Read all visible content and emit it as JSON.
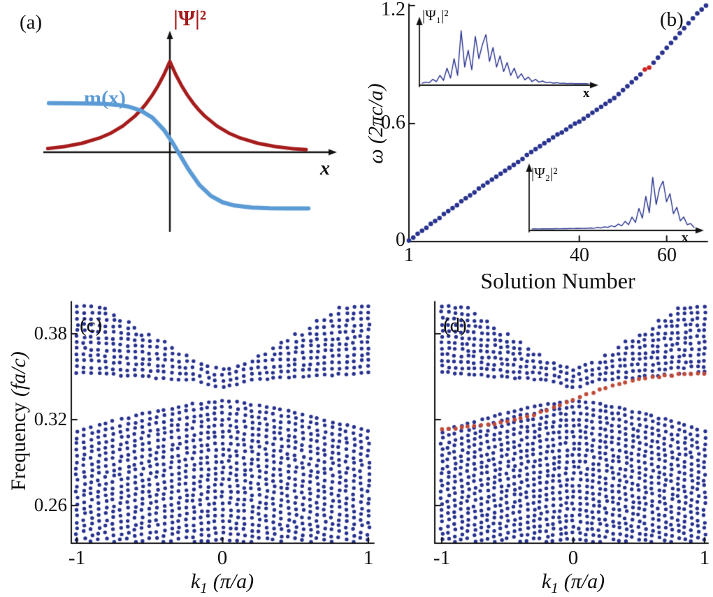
{
  "chart_data": [
    {
      "id": "panel-a",
      "type": "line",
      "panel_label": "(a)",
      "x_label": "x",
      "series": [
        {
          "name": "|Ψ|²",
          "color": "#a61c1c",
          "width": 5,
          "points": [
            [
              -1.04,
              0.04
            ],
            [
              -0.9,
              0.061
            ],
            [
              -0.75,
              0.098
            ],
            [
              -0.6,
              0.156
            ],
            [
              -0.5,
              0.212
            ],
            [
              -0.4,
              0.289
            ],
            [
              -0.3,
              0.395
            ],
            [
              -0.25,
              0.461
            ],
            [
              -0.2,
              0.538
            ],
            [
              -0.15,
              0.628
            ],
            [
              -0.1,
              0.733
            ],
            [
              -0.05,
              0.856
            ],
            [
              0,
              1.0
            ],
            [
              0.05,
              0.856
            ],
            [
              0.1,
              0.733
            ],
            [
              0.15,
              0.628
            ],
            [
              0.2,
              0.538
            ],
            [
              0.25,
              0.461
            ],
            [
              0.3,
              0.395
            ],
            [
              0.4,
              0.289
            ],
            [
              0.5,
              0.212
            ],
            [
              0.6,
              0.156
            ],
            [
              0.75,
              0.098
            ],
            [
              0.9,
              0.061
            ],
            [
              1.05,
              0.039
            ],
            [
              1.16,
              0.028
            ]
          ]
        },
        {
          "name": "m(x)",
          "color": "#5b9bd5",
          "width": 6,
          "points": [
            [
              -1.03,
              0.54
            ],
            [
              -0.85,
              0.539
            ],
            [
              -0.7,
              0.537
            ],
            [
              -0.55,
              0.532
            ],
            [
              -0.45,
              0.522
            ],
            [
              -0.35,
              0.502
            ],
            [
              -0.25,
              0.461
            ],
            [
              -0.15,
              0.382
            ],
            [
              -0.05,
              0.245
            ],
            [
              0.02,
              0.112
            ],
            [
              0.09,
              -0.04
            ],
            [
              0.16,
              -0.192
            ],
            [
              0.25,
              -0.358
            ],
            [
              0.35,
              -0.482
            ],
            [
              0.45,
              -0.552
            ],
            [
              0.55,
              -0.587
            ],
            [
              0.7,
              -0.61
            ],
            [
              0.85,
              -0.617
            ],
            [
              1.0,
              -0.619
            ],
            [
              1.18,
              -0.62
            ]
          ]
        }
      ]
    },
    {
      "id": "panel-b",
      "type": "scatter",
      "panel_label": "(b)",
      "x_label": "Solution Number",
      "y_label": "ω (2πc/a)",
      "xlim": [
        1,
        69
      ],
      "ylim": [
        0,
        1.2
      ],
      "x_tick_vals": [
        1,
        40,
        60
      ],
      "y_tick_vals": [
        0,
        0.6,
        1.2
      ],
      "x_tick_labels": [
        "1",
        "40",
        "60"
      ],
      "y_tick_labels": [
        "1.2",
        "0.6",
        "0"
      ],
      "point_color": "#28328f",
      "highlight_color": "#cc2222",
      "highlight_indices": [
        54,
        55
      ],
      "omega": [
        0.005,
        0.02,
        0.04,
        0.055,
        0.07,
        0.09,
        0.105,
        0.12,
        0.14,
        0.155,
        0.17,
        0.185,
        0.205,
        0.22,
        0.235,
        0.25,
        0.27,
        0.285,
        0.3,
        0.315,
        0.33,
        0.345,
        0.36,
        0.375,
        0.39,
        0.405,
        0.42,
        0.44,
        0.455,
        0.47,
        0.485,
        0.5,
        0.515,
        0.53,
        0.545,
        0.555,
        0.57,
        0.585,
        0.6,
        0.61,
        0.625,
        0.64,
        0.655,
        0.67,
        0.685,
        0.7,
        0.715,
        0.73,
        0.75,
        0.77,
        0.79,
        0.81,
        0.83,
        0.85,
        0.875,
        0.885,
        0.91,
        0.935,
        0.96,
        0.985,
        1.01,
        1.035,
        1.06,
        1.085,
        1.11,
        1.135,
        1.16,
        1.18,
        1.2
      ],
      "insets": [
        {
          "label": "|Ψ₁|²",
          "x_label": "x",
          "values": [
            0.01,
            0.03,
            0.02,
            0.08,
            0.04,
            0.15,
            0.06,
            0.28,
            0.1,
            0.45,
            0.15,
            0.95,
            0.3,
            0.6,
            0.25,
            0.85,
            0.45,
            0.7,
            0.88,
            0.4,
            0.65,
            0.3,
            0.5,
            0.22,
            0.38,
            0.15,
            0.28,
            0.1,
            0.18,
            0.07,
            0.12,
            0.04,
            0.08,
            0.03,
            0.05,
            0.02,
            0.03,
            0.01,
            0.02,
            0.008,
            0.01,
            0.005,
            0.008,
            0.004,
            0.005,
            0.003,
            0.003,
            0.002
          ]
        },
        {
          "label": "|Ψ₂|²",
          "x_label": "x",
          "values": [
            0.002,
            0.003,
            0.002,
            0.004,
            0.003,
            0.005,
            0.004,
            0.006,
            0.005,
            0.008,
            0.006,
            0.01,
            0.008,
            0.012,
            0.01,
            0.015,
            0.012,
            0.02,
            0.015,
            0.03,
            0.02,
            0.04,
            0.03,
            0.06,
            0.04,
            0.09,
            0.06,
            0.14,
            0.08,
            0.22,
            0.12,
            0.38,
            0.2,
            0.6,
            0.3,
            0.95,
            0.45,
            0.75,
            0.88,
            0.5,
            0.65,
            0.28,
            0.4,
            0.15,
            0.22,
            0.08,
            0.1,
            0.03
          ]
        }
      ]
    },
    {
      "id": "panel-c",
      "type": "band-scatter",
      "panel_label": "(c)",
      "y_label_main": "Frequency",
      "y_label_unit": "(fa/c)",
      "x_label_k": "k",
      "x_label_sub": "1",
      "x_label_rest": "(π/a)",
      "xlim": [
        -1,
        1
      ],
      "ylim": [
        0.2337,
        0.4024
      ],
      "x_tick_vals": [
        -1,
        0,
        1
      ],
      "y_tick_vals": [
        0.26,
        0.32,
        0.38
      ],
      "x_tick_labels": [
        "-1",
        "0",
        "1"
      ],
      "y_tick_labels": [
        "0.38",
        "0.32",
        "0.26"
      ],
      "point_color": "#28328f",
      "bands": {
        "f_step": 0.0042,
        "lower_band_bottom": 0.2337,
        "k": [
          -1,
          -0.95,
          -0.9,
          -0.85,
          -0.8,
          -0.75,
          -0.7,
          -0.65,
          -0.6,
          -0.55,
          -0.5,
          -0.45,
          -0.4,
          -0.35,
          -0.3,
          -0.25,
          -0.2,
          -0.15,
          -0.1,
          -0.05,
          0,
          0.05,
          0.1,
          0.15,
          0.2,
          0.25,
          0.3,
          0.35,
          0.4,
          0.45,
          0.5,
          0.55,
          0.6,
          0.65,
          0.7,
          0.75,
          0.8,
          0.85,
          0.9,
          0.95,
          1
        ],
        "upper_band_bottom": [
          0.353,
          0.3527,
          0.3524,
          0.352,
          0.3517,
          0.3514,
          0.3511,
          0.3507,
          0.3504,
          0.3501,
          0.3498,
          0.3494,
          0.3491,
          0.3488,
          0.3485,
          0.3481,
          0.3476,
          0.3466,
          0.3452,
          0.3435,
          0.3425,
          0.3435,
          0.3452,
          0.3466,
          0.3476,
          0.3481,
          0.3485,
          0.3488,
          0.3491,
          0.3494,
          0.3498,
          0.3501,
          0.3504,
          0.3507,
          0.3511,
          0.3514,
          0.3517,
          0.352,
          0.3524,
          0.3527,
          0.353
        ],
        "upper_band_top": [
          0.4024,
          0.4024,
          0.4024,
          0.4013,
          0.3981,
          0.395,
          0.3919,
          0.3888,
          0.3858,
          0.3828,
          0.3799,
          0.3771,
          0.3743,
          0.3716,
          0.369,
          0.3664,
          0.364,
          0.3617,
          0.3595,
          0.3575,
          0.356,
          0.3575,
          0.3595,
          0.3617,
          0.364,
          0.3664,
          0.369,
          0.3716,
          0.3743,
          0.3771,
          0.3799,
          0.3828,
          0.3858,
          0.3888,
          0.3919,
          0.395,
          0.3981,
          0.4013,
          0.4024,
          0.4024,
          0.4024
        ],
        "lower_band_top": [
          0.3115,
          0.313,
          0.3145,
          0.3159,
          0.3173,
          0.3186,
          0.32,
          0.3212,
          0.3225,
          0.3237,
          0.3249,
          0.326,
          0.327,
          0.3281,
          0.329,
          0.3299,
          0.3307,
          0.3315,
          0.3321,
          0.3327,
          0.333,
          0.3327,
          0.3321,
          0.3315,
          0.3307,
          0.3299,
          0.329,
          0.3281,
          0.327,
          0.326,
          0.3249,
          0.3237,
          0.3225,
          0.3212,
          0.32,
          0.3186,
          0.3173,
          0.3159,
          0.3145,
          0.313,
          0.3115
        ]
      }
    },
    {
      "id": "panel-d",
      "type": "band-scatter",
      "panel_label": "(d)",
      "x_tick_vals": [
        -1,
        0,
        1
      ],
      "x_tick_labels": [
        "-1",
        "0",
        "1"
      ],
      "point_color": "#28328f",
      "bands_same_as": "panel-c",
      "edge_state": {
        "color": "#c24a38",
        "f": [
          0.3135,
          0.3138,
          0.3141,
          0.3145,
          0.3149,
          0.3154,
          0.3159,
          0.3165,
          0.3172,
          0.318,
          0.3189,
          0.3199,
          0.321,
          0.3222,
          0.3236,
          0.3251,
          0.3267,
          0.3284,
          0.3302,
          0.3321,
          0.334,
          0.3358,
          0.3375,
          0.3391,
          0.3407,
          0.3422,
          0.3436,
          0.3449,
          0.346,
          0.3471,
          0.348,
          0.3488,
          0.3495,
          0.3501,
          0.3506,
          0.351,
          0.3514,
          0.3518,
          0.352,
          0.3523,
          0.3525
        ]
      }
    }
  ]
}
